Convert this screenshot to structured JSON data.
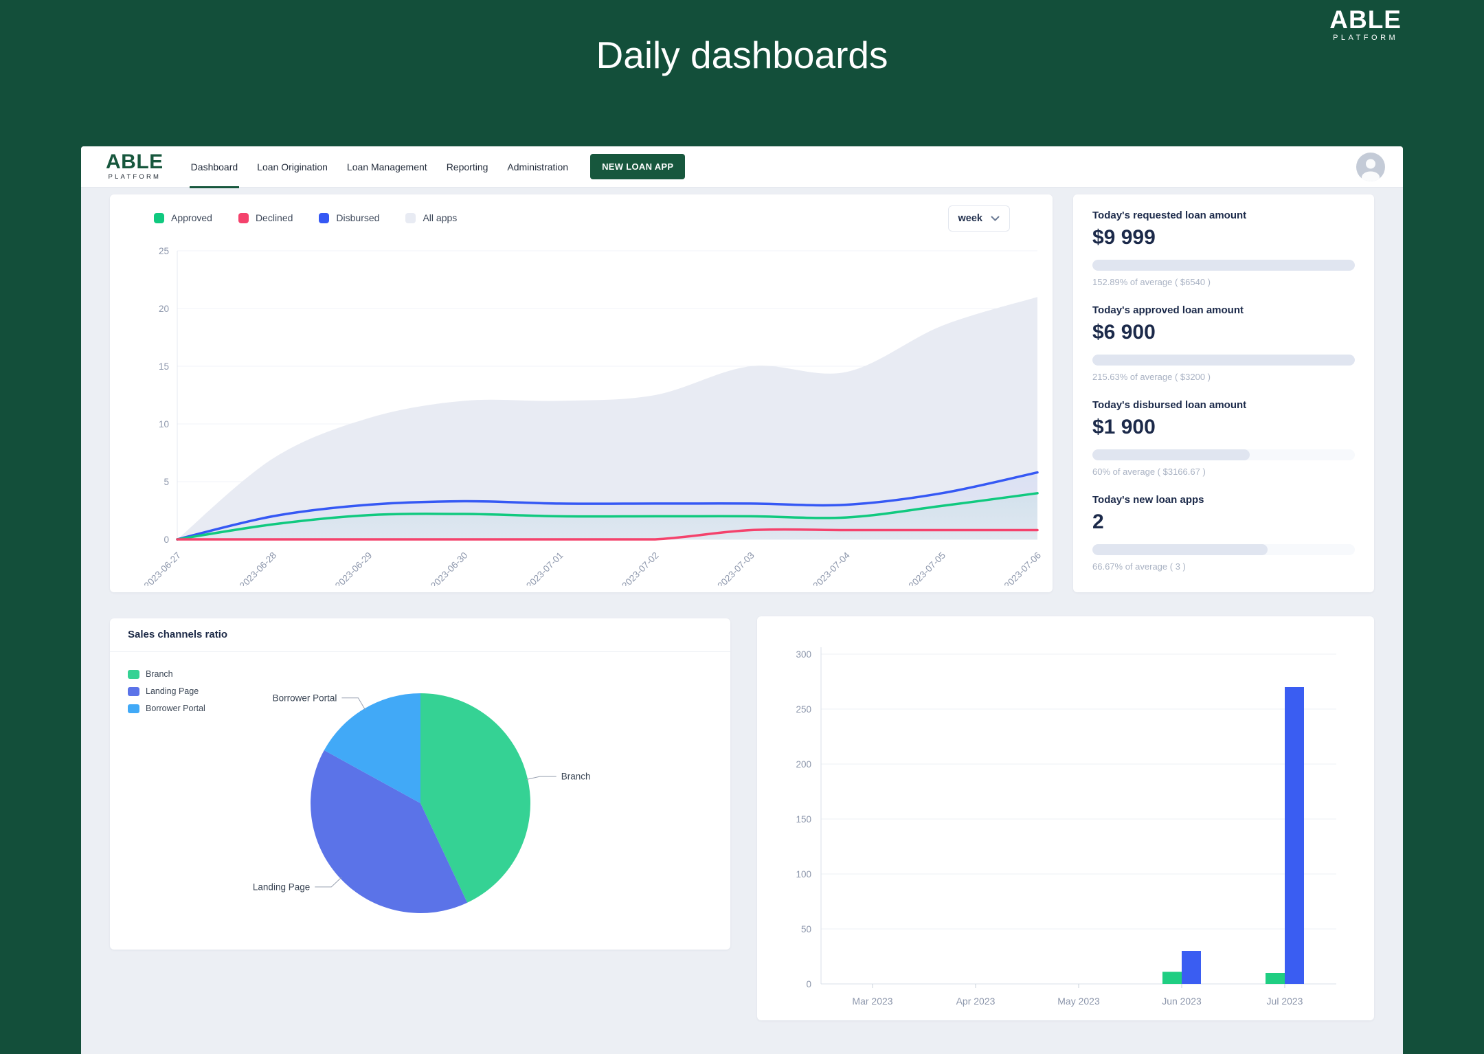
{
  "brand": {
    "name": "ABLE",
    "subtitle": "PLATFORM"
  },
  "page_title": "Daily dashboards",
  "navbar": {
    "logo": {
      "text": "ABLE",
      "subtitle": "PLATFORM"
    },
    "items": [
      {
        "label": "Dashboard",
        "active": true
      },
      {
        "label": "Loan Origination",
        "active": false
      },
      {
        "label": "Loan Management",
        "active": false
      },
      {
        "label": "Reporting",
        "active": false
      },
      {
        "label": "Administration",
        "active": false
      }
    ],
    "cta_label": "NEW LOAN APP"
  },
  "period_select": {
    "value": "week"
  },
  "stats": [
    {
      "title": "Today's requested loan amount",
      "value": "$9 999",
      "progress_percent": 100,
      "caption": "152.89% of average ( $6540 )"
    },
    {
      "title": "Today's approved loan amount",
      "value": "$6 900",
      "progress_percent": 100,
      "caption": "215.63% of average ( $3200 )"
    },
    {
      "title": "Today's disbursed loan amount",
      "value": "$1 900",
      "progress_percent": 60,
      "caption": "60% of average ( $3166.67 )"
    },
    {
      "title": "Today's new loan apps",
      "value": "2",
      "progress_percent": 66.67,
      "caption": "66.67% of average ( 3 )"
    }
  ],
  "sales_channels": {
    "title": "Sales channels ratio"
  },
  "theme": {
    "background_green": "#134F3A",
    "accent_green": "#17573D",
    "approved": "#10C97F",
    "declined": "#F4426C",
    "disbursed": "#3558F4",
    "all_apps": "#E8EBF3",
    "progress_fill": "#E0E5F0",
    "axis_label": "#8C96AB"
  },
  "chart_data": [
    {
      "id": "daily-loans-line",
      "type": "area",
      "x": [
        "2023-06-27",
        "2023-06-28",
        "2023-06-29",
        "2023-06-30",
        "2023-07-01",
        "2023-07-02",
        "2023-07-03",
        "2023-07-04",
        "2023-07-05",
        "2023-07-06"
      ],
      "series": [
        {
          "name": "All apps",
          "color": "#E8EBF3",
          "area": "solid",
          "values": [
            0,
            7,
            10.5,
            12,
            12,
            12.5,
            15,
            14.5,
            18.5,
            21
          ]
        },
        {
          "name": "Disbursed",
          "color": "#3558F4",
          "area": "gradient",
          "values": [
            0,
            2,
            3,
            3.3,
            3.1,
            3.1,
            3.1,
            3,
            4,
            5.8
          ]
        },
        {
          "name": "Approved",
          "color": "#10C97F",
          "area": "gradient",
          "values": [
            0,
            1.3,
            2.1,
            2.2,
            2,
            2,
            2,
            1.9,
            2.9,
            4
          ]
        },
        {
          "name": "Declined",
          "color": "#F4426C",
          "area": "none",
          "values": [
            0,
            0,
            0,
            0,
            0,
            0,
            0.8,
            0.8,
            0.8,
            0.8
          ]
        }
      ],
      "legend": [
        {
          "label": "Approved",
          "color": "#10C97F"
        },
        {
          "label": "Declined",
          "color": "#F4426C"
        },
        {
          "label": "Disbursed",
          "color": "#3558F4"
        },
        {
          "label": "All apps",
          "color": "#E8EBF3"
        }
      ],
      "ylim": [
        0,
        25
      ],
      "yticks": [
        0,
        5,
        10,
        15,
        20,
        25
      ],
      "grid": true,
      "legend_position": "top-left"
    },
    {
      "id": "sales-channels-pie",
      "type": "pie",
      "title": "Sales channels ratio",
      "labels": [
        "Branch",
        "Landing Page",
        "Borrower Portal"
      ],
      "values_percent": [
        43,
        40,
        17
      ],
      "colors": [
        "#35D294",
        "#5B73E8",
        "#41A9F7"
      ],
      "legend_position": "top-left"
    },
    {
      "id": "monthly-bars",
      "type": "bar",
      "categories": [
        "Mar 2023",
        "Apr 2023",
        "May 2023",
        "Jun 2023",
        "Jul 2023"
      ],
      "series": [
        {
          "name": "green",
          "color": "#1FCE82",
          "values": [
            0,
            0,
            0,
            11,
            10
          ]
        },
        {
          "name": "blue",
          "color": "#3A5DF2",
          "values": [
            0,
            0,
            0,
            30,
            270
          ]
        }
      ],
      "ylim": [
        0,
        300
      ],
      "yticks": [
        0,
        50,
        100,
        150,
        200,
        250,
        300
      ],
      "grid": true
    }
  ]
}
